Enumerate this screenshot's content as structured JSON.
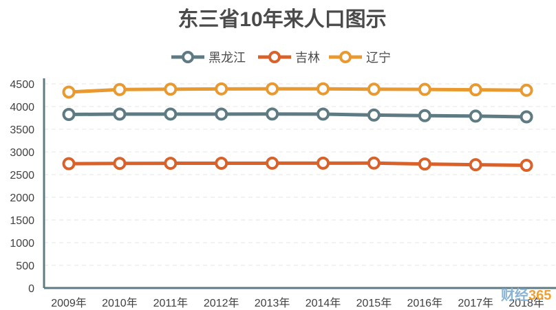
{
  "chart_data": {
    "type": "line",
    "title": "东三省10年来人口图示",
    "xlabel": "",
    "ylabel": "",
    "categories": [
      "2009年",
      "2010年",
      "2011年",
      "2012年",
      "2013年",
      "2014年",
      "2015年",
      "2016年",
      "2017年",
      "2018年"
    ],
    "ylim": [
      0,
      4500
    ],
    "yticks": [
      0,
      500,
      1000,
      1500,
      2000,
      2500,
      3000,
      3500,
      4000,
      4500
    ],
    "grid": true,
    "legend_position": "top",
    "series": [
      {
        "name": "黑龙江",
        "color": "#5e7b84",
        "values": [
          3826,
          3833,
          3834,
          3834,
          3835,
          3833,
          3812,
          3799,
          3789,
          3773
        ]
      },
      {
        "name": "吉林",
        "color": "#d9622b",
        "values": [
          2740,
          2747,
          2749,
          2750,
          2751,
          2752,
          2753,
          2733,
          2717,
          2704
        ]
      },
      {
        "name": "辽宁",
        "color": "#e8992f",
        "values": [
          4319,
          4375,
          4383,
          4389,
          4390,
          4391,
          4382,
          4378,
          4369,
          4359
        ]
      }
    ]
  },
  "watermark": {
    "text": "财经365",
    "color_main": "#8ab4d6",
    "color_accent": "#f0a030"
  }
}
